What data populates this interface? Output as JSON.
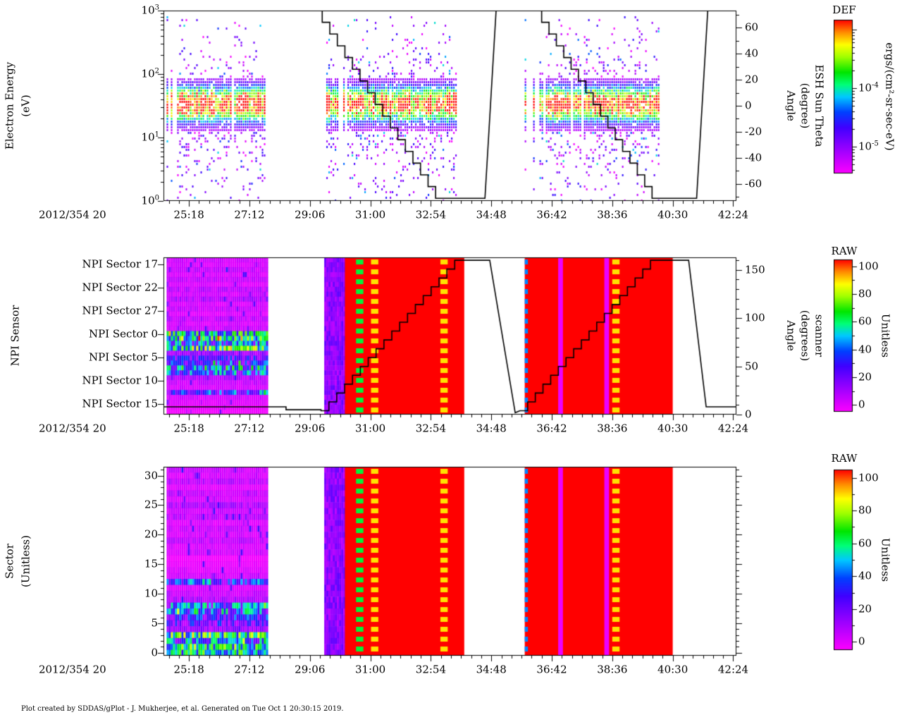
{
  "footer": {
    "text": "Plot created by SDDAS/gPlot - J. Mukherjee, et al.  Generated on Tue Oct 1 20:30:15 2019."
  },
  "colormap": {
    "stops": [
      [
        0,
        255,
        0,
        255
      ],
      [
        0.15,
        160,
        0,
        255
      ],
      [
        0.3,
        64,
        0,
        255
      ],
      [
        0.4,
        0,
        64,
        255
      ],
      [
        0.5,
        0,
        200,
        255
      ],
      [
        0.58,
        0,
        255,
        120
      ],
      [
        0.66,
        0,
        230,
        0
      ],
      [
        0.76,
        160,
        255,
        0
      ],
      [
        0.84,
        255,
        255,
        0
      ],
      [
        0.92,
        255,
        140,
        0
      ],
      [
        1,
        255,
        0,
        0
      ]
    ]
  },
  "time_axis": {
    "start_label": "2012/354 20",
    "tick_labels": [
      "25:18",
      "27:12",
      "29:06",
      "31:00",
      "32:54",
      "34:48",
      "36:42",
      "38:36",
      "40:30",
      "42:24"
    ],
    "tick_minutes": [
      25.3,
      27.2,
      29.1,
      31,
      32.9,
      34.8,
      36.7,
      38.6,
      40.5,
      42.4
    ],
    "range_minutes": [
      24.5,
      42.5
    ],
    "minor_subdivisions": 6
  },
  "chart_data": [
    {
      "type": "heatmap",
      "name": "electron-energy-spectrogram",
      "left_axis": {
        "title_lines": [
          "Electron Energy",
          "(eV)"
        ],
        "scale": "log",
        "mantissa": "10",
        "decade_exponents": [
          "3",
          "2",
          "1",
          "0"
        ],
        "ylim_ev": [
          1,
          1000
        ]
      },
      "right_axis": {
        "title_lines": [
          "Angle",
          "(degree)",
          "ESH Sun Theta"
        ],
        "ticks": [
          60,
          40,
          20,
          0,
          -20,
          -40,
          -60
        ],
        "minor_step": 10,
        "range": [
          -73,
          73
        ]
      },
      "colorbar": {
        "title": "DEF",
        "unit_label": "ergs/(cm²-sr-sec-eV)",
        "mantissa": "10",
        "tick_exponents": [
          "-4",
          "-5"
        ],
        "exp_top": -2.83,
        "exp_bottom": -5.46
      },
      "segments_minutes": [
        [
          24.6,
          27.7
        ],
        [
          29.55,
          33.7
        ],
        [
          35.85,
          40.1
        ]
      ],
      "band": {
        "center_log10_ev": 1.52,
        "sigma": 0.2
      },
      "overlay_line": {
        "name": "esh-sun-theta-angle-line",
        "pieces": [
          {
            "kind": "flat",
            "t": [
              24.5,
              29.25
            ],
            "v": 73
          },
          {
            "kind": "stairs",
            "t": [
              29.25,
              33.05
            ],
            "v": [
              73,
              -71
            ],
            "steps": 16
          },
          {
            "kind": "flat",
            "t": [
              33.05,
              34.6
            ],
            "v": -71
          },
          {
            "kind": "ramp",
            "t": [
              34.6,
              34.95
            ],
            "v": [
              -71,
              73
            ]
          },
          {
            "kind": "flat",
            "t": [
              34.95,
              36.15
            ],
            "v": 73
          },
          {
            "kind": "stairs",
            "t": [
              36.15,
              39.85
            ],
            "v": [
              73,
              -71
            ],
            "steps": 16
          },
          {
            "kind": "flat",
            "t": [
              39.85,
              41.25
            ],
            "v": -71
          },
          {
            "kind": "ramp",
            "t": [
              41.25,
              41.6
            ],
            "v": [
              -71,
              73
            ]
          },
          {
            "kind": "flat",
            "t": [
              41.6,
              42.5
            ],
            "v": 73
          }
        ]
      }
    },
    {
      "type": "heatmap",
      "name": "npi-sensor-raw",
      "left_axis": {
        "title_lines": [
          "NPI Sensor"
        ],
        "sector_labels": [
          "NPI Sector 17",
          "NPI Sector 22",
          "NPI Sector 27",
          "NPI Sector 0",
          "NPI Sector 5",
          "NPI Sector 10",
          "NPI Sector 15"
        ]
      },
      "right_axis": {
        "title_lines": [
          "Angle",
          "(degrees)",
          "scanner"
        ],
        "ticks": [
          150,
          100,
          50,
          0
        ],
        "minor_step": 10,
        "range": [
          0,
          163
        ]
      },
      "colorbar": {
        "title": "RAW",
        "unit_label": "Unitless",
        "ticks": [
          100,
          80,
          60,
          40,
          20,
          0
        ],
        "minor_step": 10,
        "range": [
          0,
          100
        ]
      },
      "noise_segment_minutes": [
        24.6,
        27.75
      ],
      "sector_profile": [
        52,
        58,
        34,
        60,
        15,
        22,
        26,
        38,
        34,
        12,
        8,
        6,
        30,
        7,
        5,
        3,
        2,
        7,
        6,
        9,
        6,
        8,
        5,
        10,
        7,
        12,
        6,
        8,
        5,
        10,
        6,
        8
      ],
      "bands": [
        {
          "t": [
            29.55,
            30.2
          ],
          "v": 17,
          "style": "noisy"
        },
        {
          "t": [
            30.2,
            33.95
          ],
          "v": 100,
          "style": "solid"
        },
        {
          "t": [
            30.55,
            30.78
          ],
          "v": 62,
          "style": "dash"
        },
        {
          "t": [
            31.02,
            31.25
          ],
          "v": 86,
          "style": "dash"
        },
        {
          "t": [
            33.2,
            33.43
          ],
          "v": 86,
          "style": "dash"
        },
        {
          "t": [
            35.85,
            40.5
          ],
          "v": 100,
          "style": "solid"
        },
        {
          "t": [
            35.85,
            35.95
          ],
          "v": 45,
          "style": "dash"
        },
        {
          "t": [
            36.9,
            37.05
          ],
          "v": 3,
          "style": "solid"
        },
        {
          "t": [
            38.35,
            38.5
          ],
          "v": 3,
          "style": "solid"
        },
        {
          "t": [
            38.6,
            38.83
          ],
          "v": 86,
          "style": "dash"
        }
      ],
      "overlay_line": {
        "name": "scanner-angle-line",
        "pieces": [
          {
            "kind": "flat",
            "t": [
              24.5,
              28.35
            ],
            "v": 8
          },
          {
            "kind": "flat",
            "t": [
              28.35,
              29.45
            ],
            "v": 5
          },
          {
            "kind": "stairs",
            "t": [
              29.45,
              33.65
            ],
            "v": [
              4,
              160
            ],
            "steps": 17
          },
          {
            "kind": "flat",
            "t": [
              33.65,
              34.75
            ],
            "v": 160
          },
          {
            "kind": "ramp",
            "t": [
              34.75,
              35.55
            ],
            "v": [
              160,
              2
            ]
          },
          {
            "kind": "stairs",
            "t": [
              35.7,
              39.8
            ],
            "v": [
              4,
              160
            ],
            "steps": 17
          },
          {
            "kind": "flat",
            "t": [
              39.8,
              41.0
            ],
            "v": 160
          },
          {
            "kind": "ramp",
            "t": [
              41.0,
              41.55
            ],
            "v": [
              160,
              8
            ]
          },
          {
            "kind": "flat",
            "t": [
              41.55,
              42.5
            ],
            "v": 8
          }
        ]
      }
    },
    {
      "type": "heatmap",
      "name": "sector-raw",
      "left_axis": {
        "title_lines": [
          "Sector",
          "(Unitless)"
        ],
        "ticks": [
          30,
          25,
          20,
          15,
          10,
          5,
          0
        ],
        "minor_step": 1,
        "range": [
          -0.5,
          31.5
        ]
      },
      "colorbar": {
        "title": "RAW",
        "unit_label": "Unitless",
        "ticks": [
          100,
          80,
          60,
          40,
          20,
          0
        ],
        "minor_step": 10,
        "range": [
          0,
          100
        ]
      },
      "noise_segment_minutes": [
        24.6,
        27.75
      ],
      "sector_profile": [
        52,
        58,
        34,
        60,
        15,
        22,
        26,
        38,
        34,
        12,
        8,
        6,
        30,
        7,
        5,
        3,
        2,
        7,
        6,
        9,
        6,
        8,
        5,
        10,
        7,
        12,
        6,
        8,
        5,
        10,
        6,
        8
      ],
      "bands": [
        {
          "t": [
            29.55,
            30.2
          ],
          "v": 17,
          "style": "noisy"
        },
        {
          "t": [
            30.2,
            33.95
          ],
          "v": 100,
          "style": "solid"
        },
        {
          "t": [
            30.55,
            30.78
          ],
          "v": 62,
          "style": "dash"
        },
        {
          "t": [
            31.02,
            31.25
          ],
          "v": 86,
          "style": "dash"
        },
        {
          "t": [
            33.2,
            33.43
          ],
          "v": 86,
          "style": "dash"
        },
        {
          "t": [
            35.85,
            40.5
          ],
          "v": 100,
          "style": "solid"
        },
        {
          "t": [
            35.85,
            35.95
          ],
          "v": 45,
          "style": "dash"
        },
        {
          "t": [
            36.9,
            37.05
          ],
          "v": 3,
          "style": "solid"
        },
        {
          "t": [
            38.35,
            38.5
          ],
          "v": 3,
          "style": "solid"
        },
        {
          "t": [
            38.6,
            38.83
          ],
          "v": 86,
          "style": "dash"
        }
      ]
    }
  ]
}
